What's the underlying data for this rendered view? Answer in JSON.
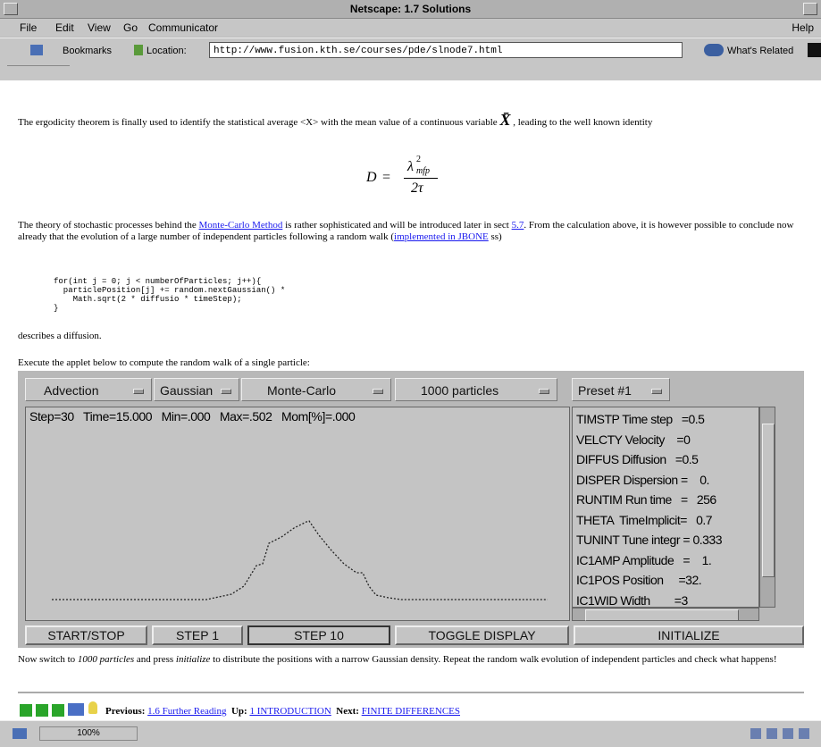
{
  "window": {
    "title": "Netscape: 1.7 Solutions"
  },
  "menu": {
    "items": [
      "File",
      "Edit",
      "View",
      "Go",
      "Communicator"
    ],
    "help": "Help"
  },
  "toolbar": {
    "bookmarks": "Bookmarks",
    "location": "Location:",
    "url": "http://www.fusion.kth.se/courses/pde/slnode7.html",
    "related": "What's Related"
  },
  "content": {
    "p1": [
      "The ergodicity theorem is finally used to identify the statistical average <X> with the mean value of a continuous variable ",
      "X̄",
      " , leading to the well known identity"
    ],
    "formula": {
      "lhs": "D",
      "eq": "=",
      "num": "λ",
      "sup": "2",
      "sub": "mfp",
      "den": "2τ"
    },
    "p2": [
      "The theory of stochastic processes behind the ",
      "Monte-Carlo Method",
      " is rather sophisticated and will be introduced later in sect ",
      "5.7",
      ". From the calculation above, it is however possible to conclude now already that the evolution of a large number of independent particles following a random walk (",
      "implemented in JBONE",
      " ss)"
    ],
    "code": [
      "for(int j = 0; j < numberOfParticles; j++){",
      "  particlePosition[j] += random.nextGaussian() *",
      "    Math.sqrt(2 * diffusio * timeStep);",
      "}"
    ],
    "p3": "describes a diffusion.",
    "p4": "Execute the applet below to compute the random walk of a single particle:",
    "p5": [
      "Now switch to ",
      "1000 particles",
      " and press ",
      "initialize",
      " to distribute the positions with a narrow Gaussian density. Repeat the random walk evolution of independent particles and check what happens!"
    ]
  },
  "applet": {
    "dropdowns": [
      "Advection",
      "Gaussian",
      "Monte-Carlo",
      "1000 particles",
      "Preset #1"
    ],
    "status": "Step=30   Time=15.000   Min=.000   Max=.502   Mom[%]=.000",
    "params": [
      "TIMSTP Time step   =0.5",
      "VELCTY Velocity    =0",
      "DIFFUS Diffusion   =0.5",
      "DISPER Dispersion =    0.",
      "RUNTIM Run time   =   256",
      "THETA  TimeImplicit=   0.7",
      "TUNINT Tune integr = 0.333",
      "IC1AMP Amplitude   =    1.",
      "IC1POS Position     =32.",
      "IC1WID Width        =3"
    ],
    "buttons": [
      "START/STOP",
      "STEP 1",
      "STEP 10",
      "TOGGLE DISPLAY",
      "INITIALIZE"
    ]
  },
  "footer": {
    "previous_label": "Previous:",
    "previous": "1.6 Further Reading",
    "up_label": "Up:",
    "up": "1 INTRODUCTION",
    "next_label": "Next:",
    "next": "FINITE DIFFERENCES"
  },
  "statusbar": {
    "zoom": "100%"
  }
}
